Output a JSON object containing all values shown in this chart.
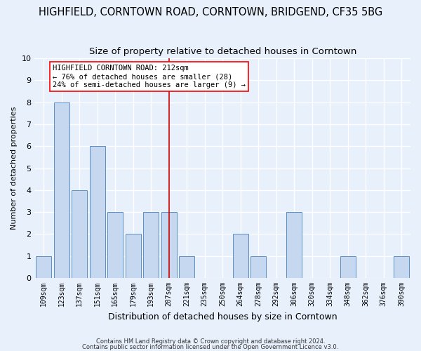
{
  "title": "HIGHFIELD, CORNTOWN ROAD, CORNTOWN, BRIDGEND, CF35 5BG",
  "subtitle": "Size of property relative to detached houses in Corntown",
  "xlabel": "Distribution of detached houses by size in Corntown",
  "ylabel": "Number of detached properties",
  "categories": [
    "109sqm",
    "123sqm",
    "137sqm",
    "151sqm",
    "165sqm",
    "179sqm",
    "193sqm",
    "207sqm",
    "221sqm",
    "235sqm",
    "250sqm",
    "264sqm",
    "278sqm",
    "292sqm",
    "306sqm",
    "320sqm",
    "334sqm",
    "348sqm",
    "362sqm",
    "376sqm",
    "390sqm"
  ],
  "values": [
    1,
    8,
    4,
    6,
    3,
    2,
    3,
    3,
    1,
    0,
    0,
    2,
    1,
    0,
    3,
    0,
    0,
    1,
    0,
    0,
    1
  ],
  "bar_color": "#c5d8f0",
  "bar_edge_color": "#5b8ec4",
  "red_line_x": 7,
  "ylim": [
    0,
    10
  ],
  "yticks": [
    0,
    1,
    2,
    3,
    4,
    5,
    6,
    7,
    8,
    9,
    10
  ],
  "annotation_title": "HIGHFIELD CORNTOWN ROAD: 212sqm",
  "annotation_line1": "← 76% of detached houses are smaller (28)",
  "annotation_line2": "24% of semi-detached houses are larger (9) →",
  "footer1": "Contains HM Land Registry data © Crown copyright and database right 2024.",
  "footer2": "Contains public sector information licensed under the Open Government Licence v3.0.",
  "bg_color": "#e8f0fb",
  "grid_color": "#ffffff",
  "title_fontsize": 10.5,
  "subtitle_fontsize": 9.5,
  "tick_fontsize": 7,
  "ylabel_fontsize": 8,
  "xlabel_fontsize": 9,
  "annotation_fontsize": 7.5,
  "footer_fontsize": 6
}
